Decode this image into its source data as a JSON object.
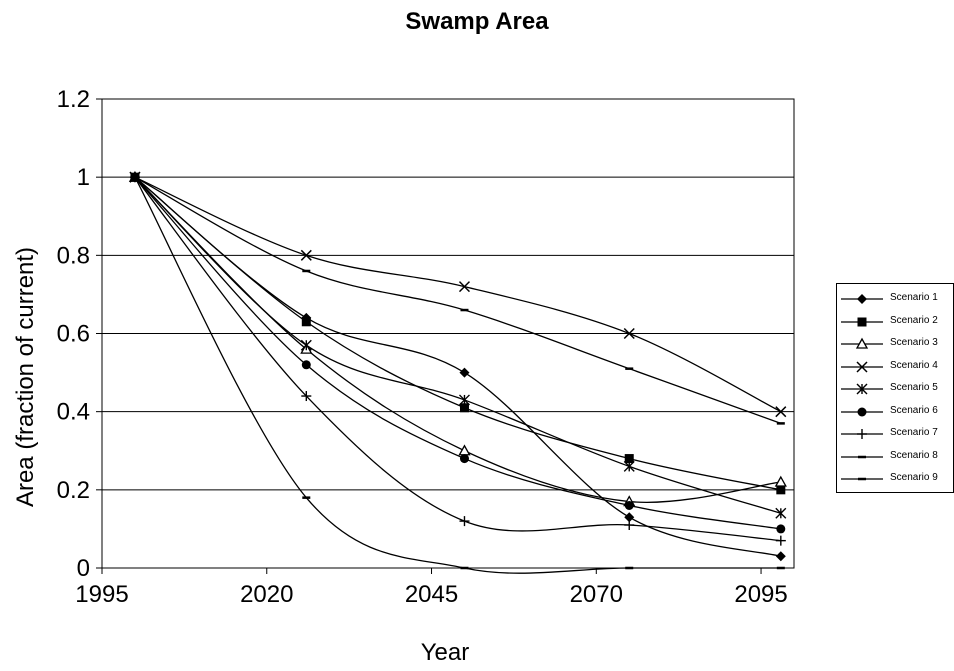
{
  "chart_data": {
    "type": "line",
    "title": "Swamp Area",
    "xlabel": "Year",
    "ylabel": "Area (fraction of current)",
    "xlim": [
      1995,
      2100
    ],
    "ylim": [
      0,
      1.2
    ],
    "x_ticks": [
      "1995",
      "2020",
      "2045",
      "2070",
      "2095"
    ],
    "y_ticks": [
      "0",
      "0.2",
      "0.4",
      "0.6",
      "0.8",
      "1",
      "1.2"
    ],
    "grid": "horizontal",
    "legend_position": "right",
    "series": [
      {
        "name": "Scenario 1",
        "marker": "diamond",
        "x": [
          2000,
          2026,
          2050,
          2075,
          2098
        ],
        "y": [
          1.0,
          0.64,
          0.5,
          0.13,
          0.03
        ]
      },
      {
        "name": "Scenario 2",
        "marker": "square",
        "x": [
          2000,
          2026,
          2050,
          2075,
          2098
        ],
        "y": [
          1.0,
          0.63,
          0.41,
          0.28,
          0.2
        ]
      },
      {
        "name": "Scenario 3",
        "marker": "triangle",
        "x": [
          2000,
          2026,
          2050,
          2075,
          2098
        ],
        "y": [
          1.0,
          0.56,
          0.3,
          0.17,
          0.22
        ]
      },
      {
        "name": "Scenario 4",
        "marker": "x",
        "x": [
          2000,
          2026,
          2050,
          2075,
          2098
        ],
        "y": [
          1.0,
          0.8,
          0.72,
          0.6,
          0.4
        ]
      },
      {
        "name": "Scenario 5",
        "marker": "star",
        "x": [
          2000,
          2026,
          2050,
          2075,
          2098
        ],
        "y": [
          1.0,
          0.57,
          0.43,
          0.26,
          0.14
        ]
      },
      {
        "name": "Scenario 6",
        "marker": "circle",
        "x": [
          2000,
          2026,
          2050,
          2075,
          2098
        ],
        "y": [
          1.0,
          0.52,
          0.28,
          0.16,
          0.1
        ]
      },
      {
        "name": "Scenario 7",
        "marker": "plus",
        "x": [
          2000,
          2026,
          2050,
          2075,
          2098
        ],
        "y": [
          1.0,
          0.44,
          0.12,
          0.11,
          0.07
        ]
      },
      {
        "name": "Scenario 8",
        "marker": "dash",
        "x": [
          2000,
          2026,
          2050,
          2075,
          2098
        ],
        "y": [
          1.0,
          0.76,
          0.66,
          0.51,
          0.37
        ]
      },
      {
        "name": "Scenario 9",
        "marker": "dash",
        "x": [
          2000,
          2026,
          2050,
          2075,
          2098
        ],
        "y": [
          1.0,
          0.18,
          0.0,
          0.0,
          0.0
        ]
      }
    ]
  }
}
